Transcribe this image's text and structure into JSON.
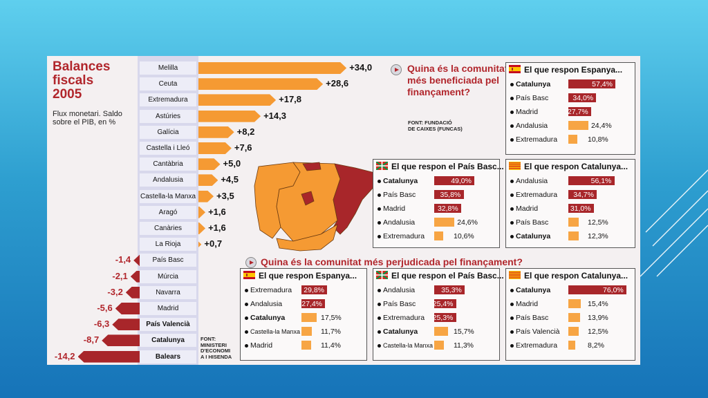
{
  "colors": {
    "negative": "#a8262a",
    "positive": "#f59a33",
    "title": "#b1262c",
    "background": "#2e9fd0"
  },
  "left_chart": {
    "title_lines": [
      "Balances",
      "fiscals",
      "2005"
    ],
    "subtitle": "Flux monetari. Saldo sobre el PIB, en %",
    "source": "FONT:\nMINISTERI\nD'ECONOMI\nA I HISENDA"
  },
  "top_question": {
    "title": "Quina és la comunitat més beneficiada pel finançament?",
    "source": "FONT: FUNDACIÓ\nDE CAIXES (FUNCAS)"
  },
  "bottom_question": {
    "title": "Quina és la comunitat més perjudicada pel finançament?"
  },
  "chart_data": [
    {
      "type": "bar",
      "title": "Balances fiscals 2005",
      "subtitle": "Flux monetari. Saldo sobre el PIB, en %",
      "categories": [
        "Melilla",
        "Ceuta",
        "Extremadura",
        "Astúries",
        "Galícia",
        "Castella i Lleó",
        "Cantàbria",
        "Andalusia",
        "Castella-la Manxa",
        "Aragó",
        "Canàries",
        "La Rioja",
        "País Basc",
        "Múrcia",
        "Navarra",
        "Madrid",
        "País Valencià",
        "Catalunya",
        "Balears"
      ],
      "values": [
        34.0,
        28.6,
        17.8,
        14.3,
        8.2,
        7.6,
        5.0,
        4.5,
        3.5,
        1.6,
        1.6,
        0.7,
        -1.4,
        -2.1,
        -3.2,
        -5.6,
        -6.3,
        -8.7,
        -14.2
      ],
      "value_labels": [
        "+34,0",
        "+28,6",
        "+17,8",
        "+14,3",
        "+8,2",
        "+7,6",
        "+5,0",
        "+4,5",
        "+3,5",
        "+1,6",
        "+1,6",
        "+0,7",
        "-1,4",
        "-2,1",
        "-3,2",
        "-5,6",
        "-6,3",
        "-8,7",
        "-14,2"
      ],
      "bold_categories": [
        "País Valencià",
        "Catalunya",
        "Balears"
      ]
    },
    {
      "type": "bar",
      "group": "top",
      "flag": "spain",
      "title": "El que respon Espanya...",
      "categories": [
        "Catalunya",
        "País Basc",
        "Madrid",
        "Andalusia",
        "Extremadura"
      ],
      "values": [
        57.4,
        34.0,
        27.7,
        24.4,
        10.8
      ],
      "value_labels": [
        "57,4%",
        "34,0%",
        "27,7%",
        "24,4%",
        "10,8%"
      ]
    },
    {
      "type": "bar",
      "group": "top",
      "flag": "basque",
      "title": "El que respon el País Basc...",
      "categories": [
        "Catalunya",
        "País Basc",
        "Madrid",
        "Andalusia",
        "Extremadura"
      ],
      "values": [
        49.0,
        35.8,
        32.8,
        24.6,
        10.6
      ],
      "value_labels": [
        "49,0%",
        "35,8%",
        "32,8%",
        "24,6%",
        "10,6%"
      ]
    },
    {
      "type": "bar",
      "group": "top",
      "flag": "catalonia",
      "title": "El que respon Catalunya...",
      "categories": [
        "Andalusia",
        "Extremadura",
        "Madrid",
        "País Basc",
        "Catalunya"
      ],
      "values": [
        56.1,
        34.7,
        31.0,
        12.5,
        12.3
      ],
      "value_labels": [
        "56,1%",
        "34,7%",
        "31,0%",
        "12,5%",
        "12,3%"
      ]
    },
    {
      "type": "bar",
      "group": "bottom",
      "flag": "spain",
      "title": "El que respon Espanya...",
      "categories": [
        "Extremadura",
        "Andalusia",
        "Catalunya",
        "Castella-la Manxa",
        "Madrid"
      ],
      "values": [
        29.8,
        27.4,
        17.5,
        11.7,
        11.4
      ],
      "value_labels": [
        "29,8%",
        "27,4%",
        "17,5%",
        "11,7%",
        "11,4%"
      ]
    },
    {
      "type": "bar",
      "group": "bottom",
      "flag": "basque",
      "title": "El que respon el País Basc...",
      "categories": [
        "Andalusia",
        "País Basc",
        "Extremadura",
        "Catalunya",
        "Castella-la Manxa"
      ],
      "values": [
        35.3,
        25.4,
        25.3,
        15.7,
        11.3
      ],
      "value_labels": [
        "35,3%",
        "25,4%",
        "25,3%",
        "15,7%",
        "11,3%"
      ]
    },
    {
      "type": "bar",
      "group": "bottom",
      "flag": "catalonia",
      "title": "El que respon Catalunya...",
      "categories": [
        "Catalunya",
        "Madrid",
        "País Basc",
        "País Valencià",
        "Extremadura"
      ],
      "values": [
        76.0,
        15.4,
        13.9,
        12.5,
        8.2
      ],
      "value_labels": [
        "76,0%",
        "15,4%",
        "13,9%",
        "12,5%",
        "8,2%"
      ]
    }
  ]
}
